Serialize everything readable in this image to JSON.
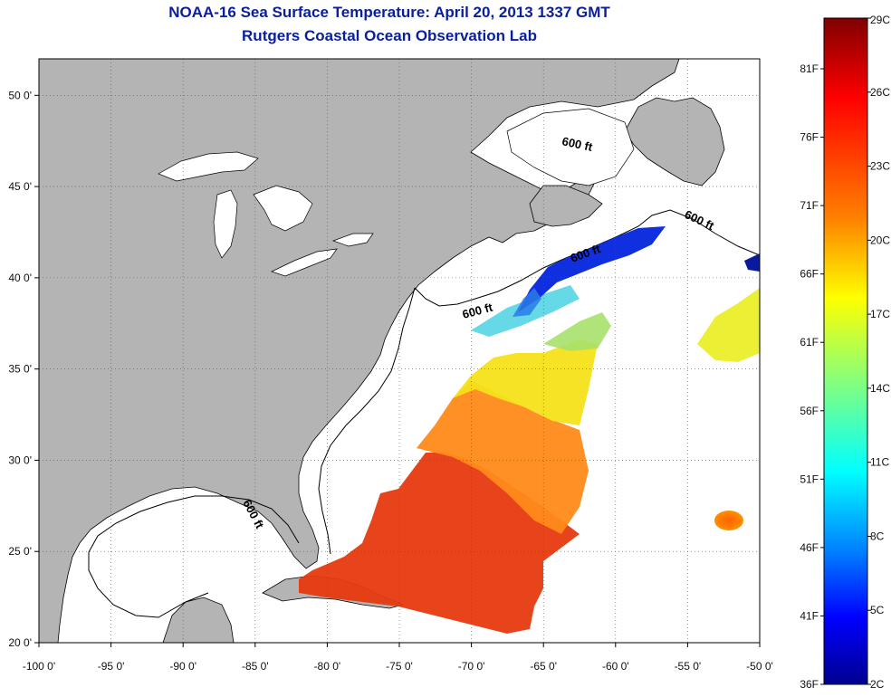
{
  "title": "NOAA-16 Sea Surface Temperature:  April 20, 2013 1337 GMT",
  "subtitle": "Rutgers Coastal Ocean Observation Lab",
  "map": {
    "lon_range": [
      -100,
      -50
    ],
    "lat_range": [
      20,
      52
    ],
    "x_ticks": [
      {
        "value": -100,
        "label": "-100 0'"
      },
      {
        "value": -95,
        "label": "-95 0'"
      },
      {
        "value": -90,
        "label": "-90 0'"
      },
      {
        "value": -85,
        "label": "-85 0'"
      },
      {
        "value": -80,
        "label": "-80 0'"
      },
      {
        "value": -75,
        "label": "-75 0'"
      },
      {
        "value": -70,
        "label": "-70 0'"
      },
      {
        "value": -65,
        "label": "-65 0'"
      },
      {
        "value": -60,
        "label": "-60 0'"
      },
      {
        "value": -55,
        "label": "-55 0'"
      },
      {
        "value": -50,
        "label": "-50 0'"
      }
    ],
    "y_ticks": [
      {
        "value": 20,
        "label": "20 0'"
      },
      {
        "value": 25,
        "label": "25 0'"
      },
      {
        "value": 30,
        "label": "30 0'"
      },
      {
        "value": 35,
        "label": "35 0'"
      },
      {
        "value": 40,
        "label": "40 0'"
      },
      {
        "value": 45,
        "label": "45 0'"
      },
      {
        "value": 50,
        "label": "50 0'"
      }
    ],
    "grid": "dotted",
    "land_color": "#b4b4b4",
    "ocean_color": "#ffffff",
    "contour_label": "600 ft"
  },
  "colorbar": {
    "celsius_labels": [
      "29C",
      "26C",
      "23C",
      "20C",
      "17C",
      "14C",
      "11C",
      "8C",
      "5C",
      "2C"
    ],
    "fahrenheit_labels": [
      "81F",
      "76F",
      "71F",
      "66F",
      "61F",
      "56F",
      "51F",
      "46F",
      "41F",
      "36F"
    ],
    "colors": [
      "#7f0000",
      "#ff0000",
      "#ff7f00",
      "#ffff00",
      "#7fff7f",
      "#00ffff",
      "#007fff",
      "#0000ff",
      "#00008f"
    ]
  }
}
